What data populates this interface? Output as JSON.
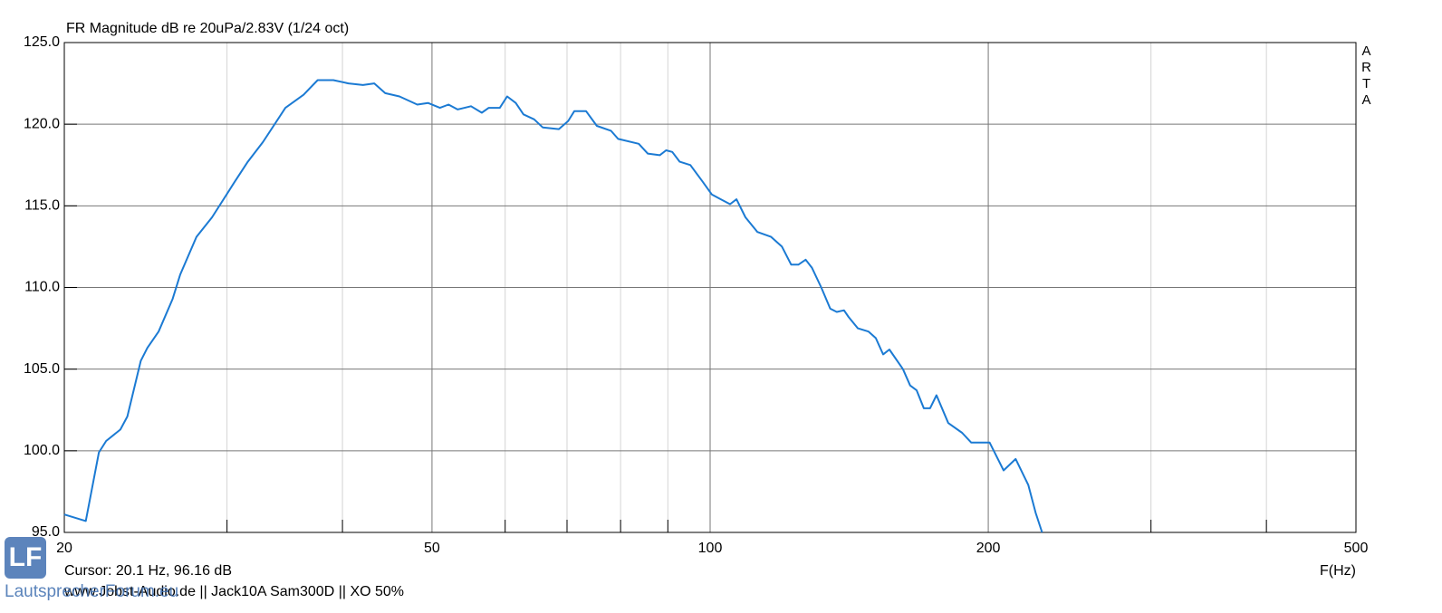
{
  "chart_data": {
    "type": "line",
    "title": "FR Magnitude dB re 20uPa/2.83V (1/24 oct)",
    "brand": "ARTA",
    "cursor": "Cursor: 20.1 Hz, 96.16 dB",
    "x_label": "F(Hz)",
    "footer": "www.Jobst-Audio.de  ||  Jack10A Sam300D  ||  XO 50%",
    "watermark": "LautsprecherForum.eu",
    "watermark_logo": "LF",
    "x_scale": "log",
    "xlim": [
      20,
      500
    ],
    "xticks": [
      20,
      50,
      100,
      200,
      500
    ],
    "x_minor_ticks": [
      30,
      40,
      60,
      70,
      80,
      90,
      300,
      400
    ],
    "ylim": [
      95,
      125
    ],
    "yticks": [
      {
        "value": 95,
        "label": "95.0"
      },
      {
        "value": 100,
        "label": "100.0"
      },
      {
        "value": 105,
        "label": "105.0"
      },
      {
        "value": 110,
        "label": "110.0"
      },
      {
        "value": 115,
        "label": "115.0"
      },
      {
        "value": 120,
        "label": "120.0"
      },
      {
        "value": 125,
        "label": "125.0"
      }
    ],
    "grid": true,
    "series": [
      {
        "name": "FR",
        "color": "#1b7ad3",
        "x": [
          20,
          21.1,
          21.8,
          22.2,
          23.0,
          23.4,
          24.2,
          24.6,
          25.3,
          26.2,
          26.7,
          27.8,
          28.9,
          30.6,
          31.6,
          32.8,
          34.7,
          36.3,
          37.6,
          39.1,
          40.6,
          42.1,
          43.3,
          44.5,
          46.1,
          48.2,
          49.5,
          51.0,
          52.1,
          53.3,
          55.1,
          56.6,
          57.6,
          59.2,
          60.3,
          61.6,
          62.8,
          64.5,
          65.9,
          68.6,
          70.2,
          71.3,
          73.4,
          75.4,
          78.1,
          79.5,
          83.7,
          85.6,
          88.2,
          89.6,
          91.0,
          92.7,
          95.2,
          98.1,
          100.4,
          102.7,
          105.1,
          106.8,
          109.2,
          112.5,
          116.4,
          119.6,
          122.4,
          124.6,
          126.9,
          128.9,
          131.9,
          134.9,
          137.1,
          139.6,
          141.2,
          144.5,
          148.4,
          151.1,
          153.9,
          156.3,
          161.7,
          164.6,
          167.3,
          170.3,
          173.0,
          175.8,
          181.0,
          187.4,
          191.7,
          198.4,
          200.7,
          207.8,
          214.1,
          221.0,
          225.1,
          228.7
        ],
        "values": [
          96.1,
          95.7,
          99.9,
          100.6,
          101.3,
          102.1,
          105.5,
          106.3,
          107.3,
          109.3,
          110.8,
          113.1,
          114.3,
          116.5,
          117.7,
          118.9,
          121.0,
          121.8,
          122.7,
          122.7,
          122.5,
          122.4,
          122.5,
          121.9,
          121.7,
          121.2,
          121.3,
          121.0,
          121.2,
          120.9,
          121.1,
          120.7,
          121.0,
          121.0,
          121.7,
          121.3,
          120.6,
          120.3,
          119.8,
          119.7,
          120.2,
          120.8,
          120.8,
          119.9,
          119.6,
          119.1,
          118.8,
          118.2,
          118.1,
          118.4,
          118.3,
          117.7,
          117.5,
          116.5,
          115.7,
          115.4,
          115.1,
          115.4,
          114.3,
          113.4,
          113.1,
          112.5,
          111.4,
          111.4,
          111.7,
          111.2,
          110.0,
          108.7,
          108.5,
          108.6,
          108.2,
          107.5,
          107.3,
          106.9,
          105.9,
          106.2,
          105.0,
          104.0,
          103.7,
          102.6,
          102.6,
          103.4,
          101.7,
          101.1,
          100.5,
          100.5,
          100.5,
          98.8,
          99.5,
          97.9,
          96.2,
          95.0
        ]
      }
    ]
  }
}
